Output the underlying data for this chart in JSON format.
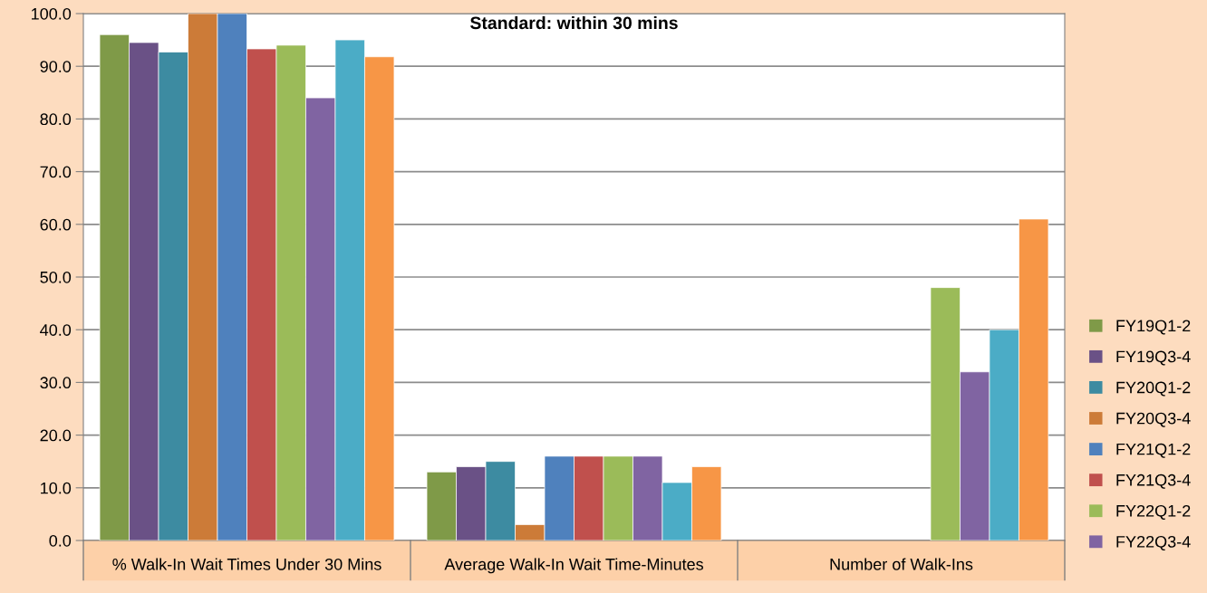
{
  "chart_data": {
    "type": "bar",
    "title": "Standard: within 30 mins",
    "categories": [
      "% Walk-In Wait Times Under 30 Mins",
      "Average Walk-In Wait Time-Minutes",
      "Number of Walk-Ins"
    ],
    "series": [
      {
        "name": "FY19Q1-2",
        "color": "#7f9a48",
        "values": [
          96,
          13,
          null
        ]
      },
      {
        "name": "FY19Q3-4",
        "color": "#6a5186",
        "values": [
          94.5,
          14,
          null
        ]
      },
      {
        "name": "FY20Q1-2",
        "color": "#3d8ba1",
        "values": [
          92.7,
          15,
          null
        ]
      },
      {
        "name": "FY20Q3-4",
        "color": "#cc7b38",
        "values": [
          100,
          3,
          null
        ]
      },
      {
        "name": "FY21Q1-2",
        "color": "#4f81bd",
        "values": [
          100,
          16,
          null
        ]
      },
      {
        "name": "FY21Q3-4",
        "color": "#c0504d",
        "values": [
          93.3,
          16,
          null
        ]
      },
      {
        "name": "FY22Q1-2",
        "color": "#9bbb59",
        "values": [
          94,
          16,
          48
        ]
      },
      {
        "name": "FY22Q3-4",
        "color": "#8064a2",
        "values": [
          84,
          16,
          32
        ]
      },
      {
        "color": "#4bacc6",
        "values": [
          95,
          11,
          40
        ]
      },
      {
        "color": "#f79646",
        "values": [
          91.8,
          14,
          61
        ]
      }
    ],
    "ylim": [
      0,
      100
    ],
    "yticks": [
      {
        "value": 0,
        "label": "0.0"
      },
      {
        "value": 10,
        "label": "10.0"
      },
      {
        "value": 20,
        "label": "20.0"
      },
      {
        "value": 30,
        "label": "30.0"
      },
      {
        "value": 40,
        "label": "40.0"
      },
      {
        "value": 50,
        "label": "50.0"
      },
      {
        "value": 60,
        "label": "60.0"
      },
      {
        "value": 70,
        "label": "70.0"
      },
      {
        "value": 80,
        "label": "80.0"
      },
      {
        "value": 90,
        "label": "90.0"
      },
      {
        "value": 100,
        "label": "100.0"
      }
    ],
    "grid": "y",
    "legend": "right"
  }
}
